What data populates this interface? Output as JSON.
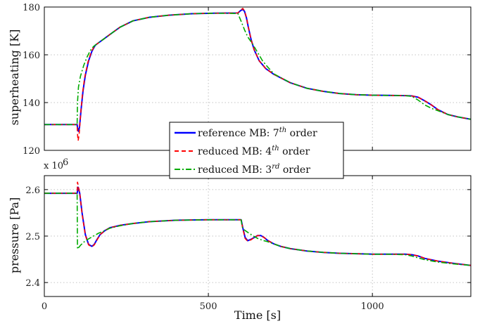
{
  "chart_data": [
    {
      "type": "line",
      "ylabel": "superheating [K]",
      "xlim": [
        0,
        1300
      ],
      "ylim": [
        120,
        180
      ],
      "xticks": [
        0,
        500,
        1000
      ],
      "yticks": [
        120,
        140,
        160,
        180
      ],
      "xtick_labels": [
        "",
        "",
        ""
      ],
      "ytick_labels": [
        "120",
        "140",
        "160",
        "180"
      ],
      "grid": true,
      "legend_position": "lower-center",
      "series": [
        {
          "name": "reference MB",
          "color": "#0000ff",
          "style": "solid",
          "x": [
            0,
            100,
            101,
            104,
            107,
            112,
            118,
            125,
            135,
            145,
            155,
            165,
            180,
            200,
            230,
            270,
            320,
            380,
            450,
            520,
            590,
            598,
            605,
            610,
            616,
            622,
            630,
            640,
            655,
            675,
            700,
            750,
            800,
            850,
            900,
            950,
            1000,
            1050,
            1100,
            1120,
            1140,
            1160,
            1180,
            1200,
            1230,
            1260,
            1300
          ],
          "y": [
            130.8,
            130.8,
            129.5,
            128.0,
            129.5,
            137.0,
            145.0,
            151.5,
            157.5,
            161.5,
            164.0,
            165.0,
            166.5,
            168.5,
            171.5,
            174.2,
            175.7,
            176.6,
            177.2,
            177.4,
            177.5,
            178.5,
            179.0,
            178.2,
            175.5,
            171.5,
            166.5,
            162.0,
            157.5,
            154.2,
            151.8,
            148.3,
            146.0,
            144.7,
            143.8,
            143.3,
            143.1,
            143.0,
            142.9,
            142.8,
            142.2,
            140.7,
            139.0,
            137.0,
            135.0,
            134.0,
            133.0
          ]
        },
        {
          "name": "reduced MB",
          "color": "#ff0000",
          "style": "dashed",
          "x": [
            0,
            100,
            101,
            103,
            106,
            110,
            116,
            123,
            133,
            143,
            153,
            165,
            180,
            200,
            230,
            270,
            320,
            380,
            450,
            520,
            590,
            598,
            605,
            610,
            616,
            622,
            630,
            640,
            655,
            675,
            700,
            750,
            800,
            850,
            900,
            950,
            1000,
            1050,
            1100,
            1120,
            1140,
            1160,
            1180,
            1200,
            1230,
            1260,
            1300
          ],
          "y": [
            130.8,
            130.8,
            127.0,
            124.0,
            126.5,
            134.0,
            143.5,
            150.5,
            157.0,
            161.2,
            163.8,
            165.0,
            166.5,
            168.5,
            171.5,
            174.2,
            175.7,
            176.6,
            177.2,
            177.4,
            177.5,
            178.7,
            179.4,
            178.4,
            175.6,
            171.5,
            166.5,
            162.0,
            157.5,
            154.2,
            151.8,
            148.3,
            146.0,
            144.7,
            143.8,
            143.3,
            143.1,
            143.0,
            142.9,
            142.8,
            142.2,
            140.7,
            139.0,
            137.0,
            135.0,
            134.0,
            133.0
          ]
        },
        {
          "name": "reduced MB",
          "color": "#00aa00",
          "style": "dashdot",
          "x": [
            0,
            100,
            101,
            104,
            110,
            120,
            130,
            140,
            150,
            165,
            180,
            200,
            230,
            270,
            320,
            380,
            450,
            520,
            590,
            600,
            610,
            620,
            635,
            650,
            665,
            680,
            700,
            750,
            800,
            850,
            900,
            950,
            1000,
            1050,
            1100,
            1120,
            1140,
            1160,
            1180,
            1200,
            1230,
            1260,
            1300
          ],
          "y": [
            130.8,
            130.8,
            140.0,
            146.5,
            151.0,
            155.5,
            159.0,
            161.8,
            163.5,
            165.0,
            166.5,
            168.5,
            171.5,
            174.2,
            175.7,
            176.6,
            177.2,
            177.4,
            177.3,
            174.0,
            170.5,
            167.5,
            164.5,
            161.0,
            157.5,
            155.0,
            152.0,
            148.3,
            146.0,
            144.7,
            143.8,
            143.3,
            143.1,
            143.0,
            142.9,
            142.6,
            141.0,
            139.0,
            137.6,
            136.6,
            135.0,
            134.0,
            133.0
          ]
        }
      ]
    },
    {
      "type": "line",
      "ylabel": "pressure [Pa]",
      "xlabel": "Time [s]",
      "multiplier_label": "x 10",
      "multiplier_exponent": "6",
      "xlim": [
        0,
        1300
      ],
      "ylim": [
        2.37,
        2.63
      ],
      "xticks": [
        0,
        500,
        1000
      ],
      "yticks": [
        2.4,
        2.5,
        2.6
      ],
      "xtick_labels": [
        "0",
        "500",
        "1000"
      ],
      "ytick_labels": [
        "2.4",
        "2.5",
        "2.6"
      ],
      "grid": true,
      "series": [
        {
          "name": "reference MB",
          "color": "#0000ff",
          "style": "solid",
          "x": [
            0,
            100,
            103,
            108,
            115,
            125,
            135,
            145,
            152,
            160,
            170,
            185,
            200,
            230,
            270,
            320,
            400,
            500,
            600,
            605,
            612,
            620,
            630,
            640,
            650,
            660,
            670,
            680,
            690,
            700,
            720,
            750,
            800,
            850,
            900,
            950,
            1000,
            1050,
            1100,
            1120,
            1140,
            1160,
            1200,
            1250,
            1300
          ],
          "y": [
            2.592,
            2.592,
            2.605,
            2.592,
            2.55,
            2.503,
            2.482,
            2.478,
            2.482,
            2.492,
            2.503,
            2.512,
            2.518,
            2.523,
            2.527,
            2.531,
            2.534,
            2.535,
            2.535,
            2.518,
            2.497,
            2.49,
            2.493,
            2.497,
            2.501,
            2.501,
            2.497,
            2.491,
            2.487,
            2.483,
            2.478,
            2.473,
            2.468,
            2.465,
            2.463,
            2.462,
            2.461,
            2.461,
            2.461,
            2.46,
            2.457,
            2.452,
            2.446,
            2.441,
            2.437
          ]
        },
        {
          "name": "reduced MB",
          "color": "#ff0000",
          "style": "dashed",
          "x": [
            0,
            100,
            101,
            103,
            108,
            115,
            125,
            135,
            145,
            152,
            160,
            170,
            185,
            200,
            230,
            270,
            320,
            400,
            500,
            600,
            605,
            612,
            620,
            630,
            640,
            650,
            660,
            670,
            680,
            690,
            700,
            720,
            750,
            800,
            850,
            900,
            950,
            1000,
            1050,
            1100,
            1120,
            1140,
            1160,
            1200,
            1250,
            1300
          ],
          "y": [
            2.592,
            2.592,
            2.616,
            2.61,
            2.592,
            2.548,
            2.502,
            2.481,
            2.477,
            2.481,
            2.491,
            2.503,
            2.512,
            2.518,
            2.523,
            2.527,
            2.531,
            2.534,
            2.535,
            2.535,
            2.516,
            2.495,
            2.489,
            2.492,
            2.497,
            2.501,
            2.501,
            2.497,
            2.491,
            2.487,
            2.483,
            2.478,
            2.473,
            2.468,
            2.465,
            2.463,
            2.462,
            2.461,
            2.461,
            2.461,
            2.46,
            2.457,
            2.452,
            2.446,
            2.441,
            2.437
          ]
        },
        {
          "name": "reduced MB",
          "color": "#00aa00",
          "style": "dashdot",
          "x": [
            0,
            100,
            101,
            110,
            125,
            145,
            165,
            185,
            200,
            230,
            270,
            320,
            400,
            500,
            600,
            603,
            610,
            620,
            635,
            650,
            665,
            680,
            700,
            720,
            750,
            800,
            850,
            900,
            950,
            1000,
            1050,
            1100,
            1120,
            1140,
            1160,
            1200,
            1250,
            1300
          ],
          "y": [
            2.592,
            2.592,
            2.472,
            2.48,
            2.49,
            2.498,
            2.506,
            2.512,
            2.517,
            2.522,
            2.527,
            2.531,
            2.534,
            2.535,
            2.535,
            2.52,
            2.513,
            2.508,
            2.501,
            2.495,
            2.491,
            2.488,
            2.483,
            2.478,
            2.473,
            2.468,
            2.465,
            2.463,
            2.462,
            2.461,
            2.461,
            2.46,
            2.457,
            2.453,
            2.449,
            2.444,
            2.44,
            2.437
          ]
        }
      ]
    }
  ],
  "legend": [
    {
      "prefix": "reference MB: 7",
      "sup": "th",
      "suffix": " order",
      "color": "#0000ff",
      "style": "solid"
    },
    {
      "prefix": "reduced MB: 4",
      "sup": "th",
      "suffix": " order",
      "color": "#ff0000",
      "style": "dashed"
    },
    {
      "prefix": "reduced MB: 3",
      "sup": "rd",
      "suffix": " order",
      "color": "#00aa00",
      "style": "dashdot"
    }
  ]
}
